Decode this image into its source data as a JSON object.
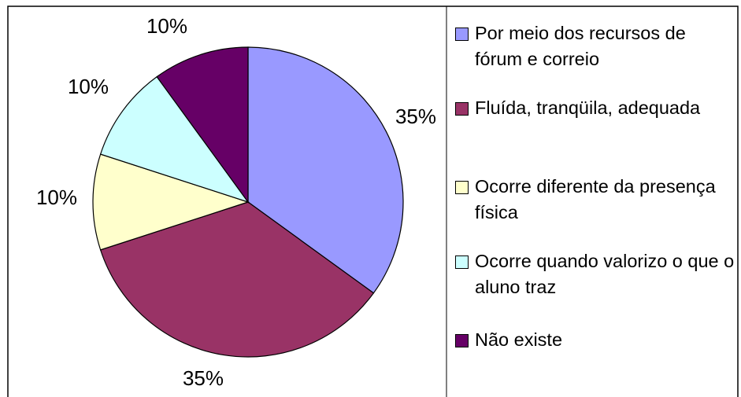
{
  "chart_data": {
    "type": "pie",
    "categories": [
      "Por meio dos recursos de fórum e correio",
      "Fluída, tranqüila, adequada",
      "Ocorre diferente da presença física",
      "Ocorre quando valorizo o que o aluno traz",
      "Não existe"
    ],
    "values": [
      35,
      35,
      10,
      10,
      10
    ],
    "value_labels": [
      "35%",
      "35%",
      "10%",
      "10%",
      "10%"
    ],
    "colors": [
      "#9999ff",
      "#993366",
      "#ffffcc",
      "#ccffff",
      "#660066"
    ],
    "legend": "right"
  }
}
